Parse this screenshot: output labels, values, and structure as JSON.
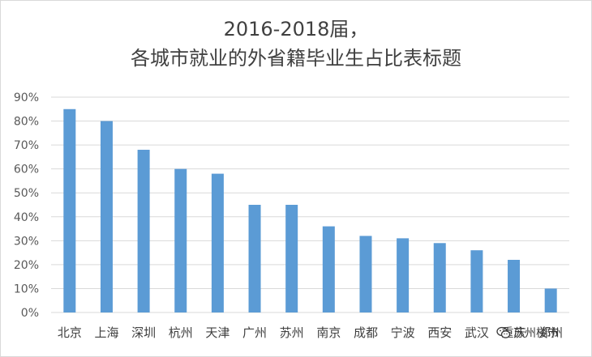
{
  "chart_data": {
    "type": "bar",
    "title_lines": [
      "2016-2018届，",
      "各城市就业的外省籍毕业生占比表标题"
    ],
    "categories": [
      "北京",
      "上海",
      "深圳",
      "杭州",
      "天津",
      "广州",
      "苏州",
      "南京",
      "成都",
      "宁波",
      "西安",
      "武汉",
      "重庆",
      "郑州"
    ],
    "values": [
      85,
      80,
      68,
      60,
      58,
      45,
      45,
      36,
      32,
      31,
      29,
      26,
      22,
      10
    ],
    "ylim": [
      0,
      90
    ],
    "yticks": [
      "0%",
      "10%",
      "20%",
      "30%",
      "40%",
      "50%",
      "60%",
      "70%",
      "80%",
      "90%"
    ],
    "xlabel": "",
    "ylabel": "",
    "grid": true,
    "bar_color": "#5b9bd5",
    "grid_color": "#d9d9d9"
  },
  "watermark": {
    "text": "苏州楼市",
    "icon": "wechat-icon"
  }
}
